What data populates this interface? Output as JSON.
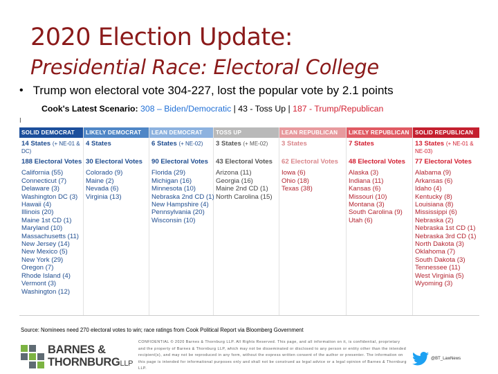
{
  "slide": {
    "title_line1": "2020 Election Update:",
    "title_line2": "Presidential Race: Electoral College",
    "bullet_text": "Trump won electoral vote 304-227, lost the popular vote by 2.1 points",
    "scenario": {
      "prefix": "Cook's Latest Scenario: ",
      "dem": "308 – Biden/Democratic",
      "sep1": " | 43 - Toss Up | ",
      "rep": "187 - Trump/Republican"
    },
    "cursor_glyph": "I"
  },
  "table": {
    "columns": [
      {
        "header": "SOLID DEMOCRAT",
        "color": "#1c4f9c",
        "count": "14 States",
        "count_note": "(+ NE-01 & DC)",
        "ev": "188 Electoral Votes",
        "states": [
          "California (55)",
          "Connecticut (7)",
          "Delaware (3)",
          "Washington DC (3)",
          "Hawaii (4)",
          "Illinois (20)",
          "Maine 1st CD (1)",
          "Maryland (10)",
          "Massachusetts (11)",
          "New Jersey (14)",
          "New Mexico (5)",
          "New York (29)",
          "Oregon (7)",
          "Rhode Island (4)",
          "Vermont (3)",
          "Washington (12)"
        ]
      },
      {
        "header": "LIKELY DEMOCRAT",
        "color": "#4f86c6",
        "count": "4 States",
        "count_note": "",
        "ev": "30 Electoral Votes",
        "states": [
          "Colorado (9)",
          "Maine (2)",
          "Nevada (6)",
          "Virginia (13)"
        ]
      },
      {
        "header": "LEAN DEMOCRAT",
        "color": "#8db2df",
        "count": "6 States",
        "count_note": "(+ NE-02)",
        "ev": "90 Electoral Votes",
        "states": [
          "Florida (29)",
          "Michigan (16)",
          "Minnesota (10)",
          "Nebraska 2nd CD (1)",
          "New Hampshire (4)",
          "Pennsylvania (20)",
          "Wisconsin (10)"
        ]
      },
      {
        "header": "TOSS UP",
        "color": "#b9b9b9",
        "count": "3 States",
        "count_note": "(+ ME-02)",
        "ev": "43 Electoral Votes",
        "states": [
          "Arizona (11)",
          "Georgia (16)",
          "Maine 2nd CD (1)",
          "North Carolina (15)"
        ]
      },
      {
        "header": "LEAN REPUBLICAN",
        "color": "#e79a9e",
        "count": "3 States",
        "count_note": "",
        "ev": "62 Electoral Votes",
        "states": [
          "Iowa (6)",
          "Ohio (18)",
          "Texas (38)"
        ]
      },
      {
        "header": "LIKELY REPUBLICAN",
        "color": "#e05a63",
        "count": "7 States",
        "count_note": "",
        "ev": "48 Electoral Votes",
        "states": [
          "Alaska (3)",
          "Indiana (11)",
          "Kansas (6)",
          "Missouri (10)",
          "Montana (3)",
          "South Carolina (9)",
          "Utah (6)"
        ]
      },
      {
        "header": "SOLID REPUBLICAN",
        "color": "#c4202f",
        "count": "13 States",
        "count_note": "(+ NE-01 & NE-03)",
        "ev": "77 Electoral Votes",
        "states": [
          "Alabama (9)",
          "Arkansas (6)",
          "Idaho (4)",
          "Kentucky (8)",
          "Louisiana (8)",
          "Mississippi (6)",
          "Nebraska (2)",
          "Nebraska 1st CD (1)",
          "Nebraska 3rd CD (1)",
          "North Dakota (3)",
          "Oklahoma (7)",
          "South Dakota (3)",
          "Tennessee (11)",
          "West Virginia (5)",
          "Wyoming (3)"
        ]
      }
    ]
  },
  "source": "Source: Nominees need 270 electoral votes to win; race ratings from Cook Political Report via Bloomberg Government",
  "footer": {
    "logo_line1": "BARNES &",
    "logo_line2": "THORNBURG",
    "logo_llp": "LLP",
    "confidential": "CONFIDENTIAL © 2020 Barnes & Thornburg LLP. All Rights Reserved. This page, and all information on it, is confidential, proprietary and the property of Barnes & Thornburg LLP, which may not be disseminated or disclosed to any person or entity other than the intended recipient(s), and may not be reproduced in any form, without the express written consent of the author or presenter. The information on this page is intended for informational purposes only and shall not be construed as legal advice or a legal opinion of Barnes & Thornburg LLP.",
    "twitter_handle": "@BT_LawNews",
    "colors": {
      "green": "#7cb342",
      "gray": "#5f6b73",
      "twitter": "#1da1f2"
    }
  }
}
